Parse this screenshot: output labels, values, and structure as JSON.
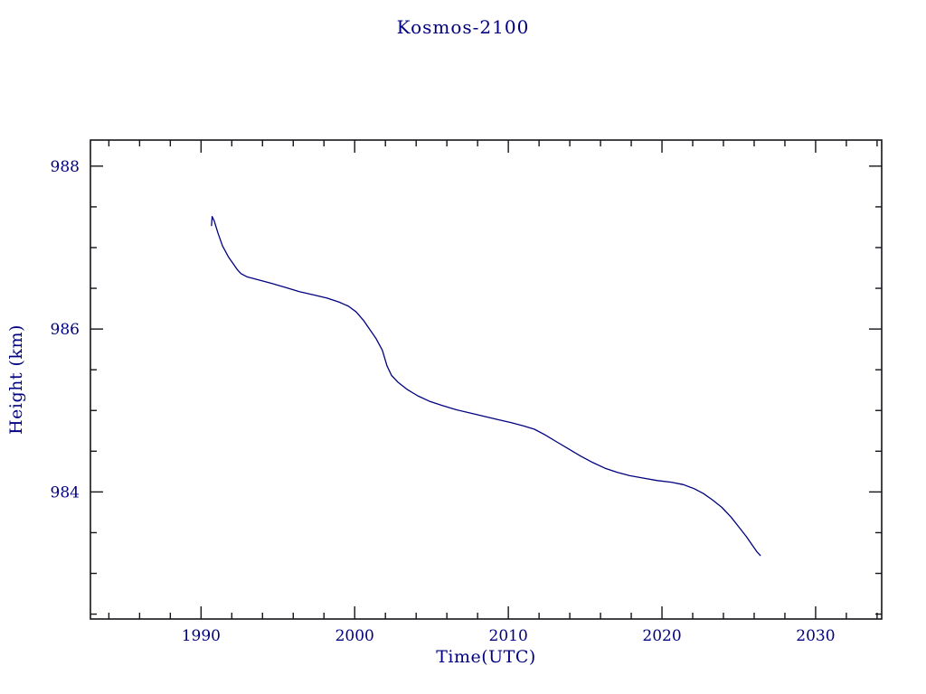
{
  "chart_data": {
    "type": "line",
    "title": "Kosmos-2100",
    "xlabel": "Time(UTC)",
    "ylabel": "Height (km)",
    "xlim": [
      1982.8,
      2034.3
    ],
    "ylim": [
      982.44,
      988.32
    ],
    "x_ticks": [
      1990,
      2000,
      2010,
      2020,
      2030
    ],
    "y_ticks": [
      984,
      986,
      988
    ],
    "x_minor_step": 2,
    "y_minor_step": 0.5,
    "grid": false,
    "legend": false,
    "line_color": "#000080",
    "text_color": "#000080",
    "frame_color": "#15151a",
    "series": [
      {
        "name": "height-km",
        "points": [
          [
            1990.68,
            987.27
          ],
          [
            1990.72,
            987.38
          ],
          [
            1990.85,
            987.33
          ],
          [
            1991.1,
            987.18
          ],
          [
            1991.4,
            987.02
          ],
          [
            1991.8,
            986.88
          ],
          [
            1992.1,
            986.8
          ],
          [
            1992.35,
            986.73
          ],
          [
            1992.6,
            986.68
          ],
          [
            1993.0,
            986.64
          ],
          [
            1993.8,
            986.6
          ],
          [
            1994.6,
            986.56
          ],
          [
            1995.5,
            986.51
          ],
          [
            1996.4,
            986.46
          ],
          [
            1997.3,
            986.42
          ],
          [
            1998.2,
            986.38
          ],
          [
            1999.0,
            986.33
          ],
          [
            1999.6,
            986.28
          ],
          [
            2000.1,
            986.21
          ],
          [
            2000.6,
            986.1
          ],
          [
            2001.0,
            985.99
          ],
          [
            2001.4,
            985.88
          ],
          [
            2001.8,
            985.74
          ],
          [
            2002.1,
            985.55
          ],
          [
            2002.4,
            985.43
          ],
          [
            2002.8,
            985.35
          ],
          [
            2003.4,
            985.26
          ],
          [
            2004.1,
            985.18
          ],
          [
            2004.9,
            985.11
          ],
          [
            2005.7,
            985.06
          ],
          [
            2006.6,
            985.01
          ],
          [
            2007.5,
            984.97
          ],
          [
            2008.4,
            984.93
          ],
          [
            2009.3,
            984.89
          ],
          [
            2010.2,
            984.85
          ],
          [
            2011.0,
            984.81
          ],
          [
            2011.7,
            984.77
          ],
          [
            2012.4,
            984.7
          ],
          [
            2013.1,
            984.62
          ],
          [
            2013.9,
            984.53
          ],
          [
            2014.7,
            984.44
          ],
          [
            2015.5,
            984.36
          ],
          [
            2016.3,
            984.29
          ],
          [
            2017.1,
            984.24
          ],
          [
            2017.9,
            984.2
          ],
          [
            2018.8,
            984.17
          ],
          [
            2019.7,
            984.14
          ],
          [
            2020.6,
            984.12
          ],
          [
            2021.4,
            984.09
          ],
          [
            2022.1,
            984.04
          ],
          [
            2022.7,
            983.98
          ],
          [
            2023.3,
            983.9
          ],
          [
            2023.9,
            983.81
          ],
          [
            2024.5,
            983.69
          ],
          [
            2025.0,
            983.57
          ],
          [
            2025.5,
            983.45
          ],
          [
            2025.9,
            983.34
          ],
          [
            2026.2,
            983.26
          ],
          [
            2026.4,
            983.22
          ]
        ]
      }
    ]
  }
}
